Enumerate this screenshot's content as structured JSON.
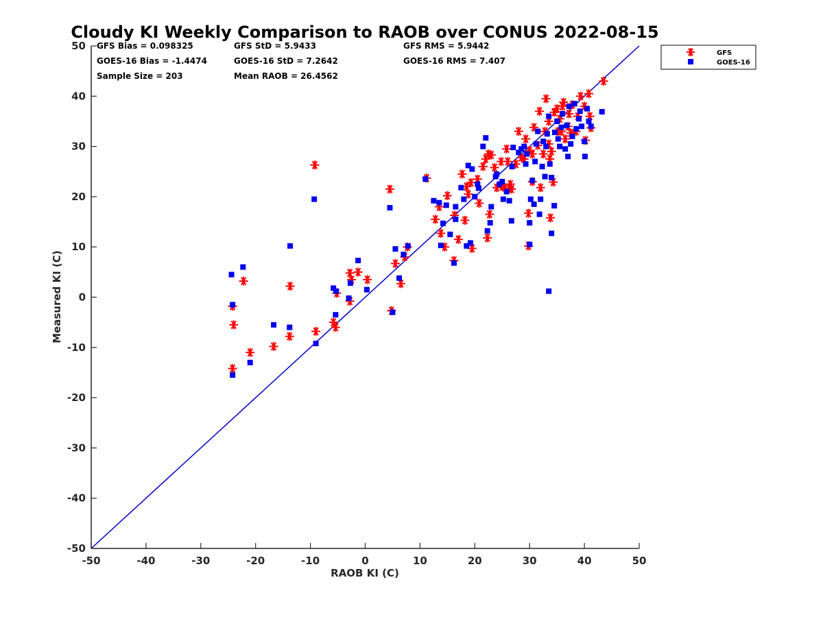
{
  "chart_data": {
    "type": "scatter",
    "title": "Cloudy KI Weekly Comparison to RAOB over CONUS 2022-08-15",
    "xlabel": "RAOB KI (C)",
    "ylabel": "Measured KI (C)",
    "xlim": [
      -50,
      50
    ],
    "ylim": [
      -50,
      50
    ],
    "xticks": [
      "-50",
      "-40",
      "-30",
      "-20",
      "-10",
      "0",
      "10",
      "20",
      "30",
      "40",
      "50"
    ],
    "yticks": [
      "-50",
      "-40",
      "-30",
      "-20",
      "-10",
      "0",
      "10",
      "20",
      "30",
      "40",
      "50"
    ],
    "grid": false,
    "legend_position": "outside-top-right",
    "reference_line": {
      "type": "identity",
      "color": "#0000cc"
    },
    "stats": [
      [
        "GFS Bias = 0.098325",
        "GFS StD = 5.9433",
        "GFS RMS = 5.9442"
      ],
      [
        "GOES-16 Bias = -1.4474",
        "GOES-16 StD = 7.2642",
        "GOES-16 RMS = 7.407"
      ],
      [
        "Sample Size = 203",
        "Mean RAOB = 26.4562"
      ]
    ],
    "series": [
      {
        "name": "GFS",
        "marker": "asterisk",
        "color": "#ff0000",
        "points": [
          [
            -24.2,
            -1.8
          ],
          [
            -24,
            -5.5
          ],
          [
            -24.2,
            -14.2
          ],
          [
            -22.2,
            3.2
          ],
          [
            -21,
            -11
          ],
          [
            -16.7,
            -9.8
          ],
          [
            -13.7,
            2.2
          ],
          [
            -13.8,
            -7.8
          ],
          [
            -9.2,
            26.3
          ],
          [
            -9,
            -6.8
          ],
          [
            -5.8,
            -5
          ],
          [
            -5.4,
            -6
          ],
          [
            -5.2,
            0.8
          ],
          [
            -2.8,
            -0.8
          ],
          [
            -2.5,
            3.5
          ],
          [
            -2.8,
            4.8
          ],
          [
            -1.3,
            5
          ],
          [
            0.4,
            3.5
          ],
          [
            4.5,
            21.5
          ],
          [
            4.8,
            -2.7
          ],
          [
            5.5,
            6.7
          ],
          [
            6.5,
            2.7
          ],
          [
            7.2,
            8
          ],
          [
            7.7,
            10
          ],
          [
            11.2,
            23.7
          ],
          [
            12.8,
            15.5
          ],
          [
            13.5,
            18
          ],
          [
            13.8,
            12.7
          ],
          [
            14.5,
            10
          ],
          [
            15,
            20.2
          ],
          [
            16.3,
            16.3
          ],
          [
            16.2,
            7.3
          ],
          [
            17,
            11.5
          ],
          [
            17.7,
            24.5
          ],
          [
            18.2,
            15.3
          ],
          [
            18.5,
            22
          ],
          [
            18.8,
            20.5
          ],
          [
            19.5,
            9.7
          ],
          [
            19.3,
            22.8
          ],
          [
            20.5,
            23.5
          ],
          [
            20.8,
            18.7
          ],
          [
            21.5,
            26
          ],
          [
            22,
            27.5
          ],
          [
            22.3,
            11.8
          ],
          [
            22.7,
            16.5
          ],
          [
            22.5,
            28.5
          ],
          [
            23,
            28.3
          ],
          [
            23.6,
            25.8
          ],
          [
            24,
            21.8
          ],
          [
            24.8,
            27
          ],
          [
            25,
            22
          ],
          [
            25.5,
            21.8
          ],
          [
            25.8,
            29.5
          ],
          [
            26,
            27
          ],
          [
            26.3,
            21.8
          ],
          [
            26.5,
            22.5
          ],
          [
            26.7,
            21.5
          ],
          [
            27.5,
            26.5
          ],
          [
            28,
            33
          ],
          [
            28.5,
            27.8
          ],
          [
            29,
            27.5
          ],
          [
            29.3,
            31.5
          ],
          [
            29.8,
            10.2
          ],
          [
            29.8,
            16.7
          ],
          [
            30,
            29.2
          ],
          [
            30.5,
            23
          ],
          [
            30.5,
            28.5
          ],
          [
            30.8,
            33.8
          ],
          [
            31.5,
            30.2
          ],
          [
            31.8,
            37
          ],
          [
            32,
            21.8
          ],
          [
            32.5,
            28.5
          ],
          [
            32.8,
            33
          ],
          [
            33,
            39.5
          ],
          [
            33.5,
            35
          ],
          [
            33.5,
            30.5
          ],
          [
            33.7,
            27.5
          ],
          [
            33.8,
            15.8
          ],
          [
            34,
            29
          ],
          [
            34.3,
            22.9
          ],
          [
            34.5,
            36.8
          ],
          [
            35,
            37.5
          ],
          [
            35.2,
            33
          ],
          [
            35.5,
            35.5
          ],
          [
            35.8,
            33
          ],
          [
            36,
            38
          ],
          [
            36.2,
            38.8
          ],
          [
            36.5,
            31.5
          ],
          [
            37,
            34
          ],
          [
            37.2,
            36.5
          ],
          [
            37.5,
            32.7
          ],
          [
            37.8,
            38.3
          ],
          [
            38.5,
            33
          ],
          [
            38.8,
            36
          ],
          [
            39.3,
            40
          ],
          [
            40,
            38
          ],
          [
            40.2,
            31.2
          ],
          [
            40.8,
            40.5
          ],
          [
            41,
            36
          ],
          [
            41.2,
            33.7
          ],
          [
            43.5,
            43
          ]
        ]
      },
      {
        "name": "GOES-16",
        "marker": "square",
        "color": "#0000ee",
        "points": [
          [
            -24.4,
            4.5
          ],
          [
            -24.2,
            -1.5
          ],
          [
            -24.2,
            -15.5
          ],
          [
            -22.3,
            6
          ],
          [
            -21,
            -13
          ],
          [
            -16.7,
            -5.5
          ],
          [
            -13.7,
            10.2
          ],
          [
            -13.8,
            -6
          ],
          [
            -9.3,
            19.5
          ],
          [
            -9,
            -9.2
          ],
          [
            -5.8,
            1.8
          ],
          [
            -5.3,
            1.2
          ],
          [
            -5.4,
            -3.5
          ],
          [
            -3,
            -0.2
          ],
          [
            -2.7,
            2.8
          ],
          [
            -1.3,
            7.3
          ],
          [
            0.3,
            1.5
          ],
          [
            4.5,
            17.8
          ],
          [
            5,
            -3
          ],
          [
            5.5,
            9.6
          ],
          [
            6.2,
            3.8
          ],
          [
            7,
            8.5
          ],
          [
            7.8,
            10.2
          ],
          [
            11,
            23.5
          ],
          [
            12.5,
            19.2
          ],
          [
            13.5,
            18.8
          ],
          [
            13.8,
            10.3
          ],
          [
            14.2,
            14.7
          ],
          [
            14.8,
            18.3
          ],
          [
            15.5,
            12.5
          ],
          [
            16.2,
            6.8
          ],
          [
            16.5,
            15.5
          ],
          [
            16.5,
            18
          ],
          [
            17.5,
            21.8
          ],
          [
            18,
            19.5
          ],
          [
            18.5,
            10.2
          ],
          [
            18.8,
            26.2
          ],
          [
            19.2,
            10.8
          ],
          [
            19.5,
            25.5
          ],
          [
            20,
            20
          ],
          [
            20.5,
            22.5
          ],
          [
            20.7,
            21.7
          ],
          [
            21.5,
            30
          ],
          [
            22,
            31.7
          ],
          [
            22.3,
            13.2
          ],
          [
            22.8,
            14.8
          ],
          [
            23,
            18
          ],
          [
            23.8,
            24
          ],
          [
            24,
            24.5
          ],
          [
            24.5,
            22.5
          ],
          [
            25,
            23
          ],
          [
            25.2,
            19.5
          ],
          [
            25.8,
            21
          ],
          [
            26.3,
            19.2
          ],
          [
            26.7,
            15.2
          ],
          [
            26.8,
            26
          ],
          [
            27,
            29.8
          ],
          [
            28,
            28.8
          ],
          [
            28.5,
            29.5
          ],
          [
            29,
            30
          ],
          [
            29.3,
            26.5
          ],
          [
            29.5,
            28.5
          ],
          [
            30,
            10.5
          ],
          [
            30,
            14.8
          ],
          [
            30.2,
            19.5
          ],
          [
            30.5,
            23.2
          ],
          [
            30.8,
            18.5
          ],
          [
            31,
            27
          ],
          [
            31.2,
            30.5
          ],
          [
            31.5,
            33
          ],
          [
            31.8,
            16.5
          ],
          [
            32,
            19.5
          ],
          [
            32.3,
            26
          ],
          [
            32.5,
            31
          ],
          [
            32.8,
            24
          ],
          [
            33,
            30
          ],
          [
            33.2,
            32.5
          ],
          [
            33.5,
            1.2
          ],
          [
            33.5,
            36
          ],
          [
            33.7,
            26.5
          ],
          [
            34,
            12.7
          ],
          [
            34,
            23.8
          ],
          [
            34.5,
            18.2
          ],
          [
            34.6,
            32.8
          ],
          [
            35,
            35
          ],
          [
            35.2,
            31.5
          ],
          [
            35.5,
            30
          ],
          [
            35.8,
            33.8
          ],
          [
            36,
            36.5
          ],
          [
            36.5,
            29.5
          ],
          [
            36.8,
            34.2
          ],
          [
            37,
            28
          ],
          [
            37.2,
            38
          ],
          [
            37.5,
            30.5
          ],
          [
            37.8,
            32
          ],
          [
            38.2,
            38.5
          ],
          [
            38.5,
            33.5
          ],
          [
            39,
            35.5
          ],
          [
            39.2,
            37
          ],
          [
            39.5,
            34
          ],
          [
            40,
            31
          ],
          [
            40.1,
            28
          ],
          [
            40.5,
            37.5
          ],
          [
            40.8,
            35
          ],
          [
            41.2,
            34
          ],
          [
            43.2,
            36.9
          ]
        ]
      }
    ]
  }
}
